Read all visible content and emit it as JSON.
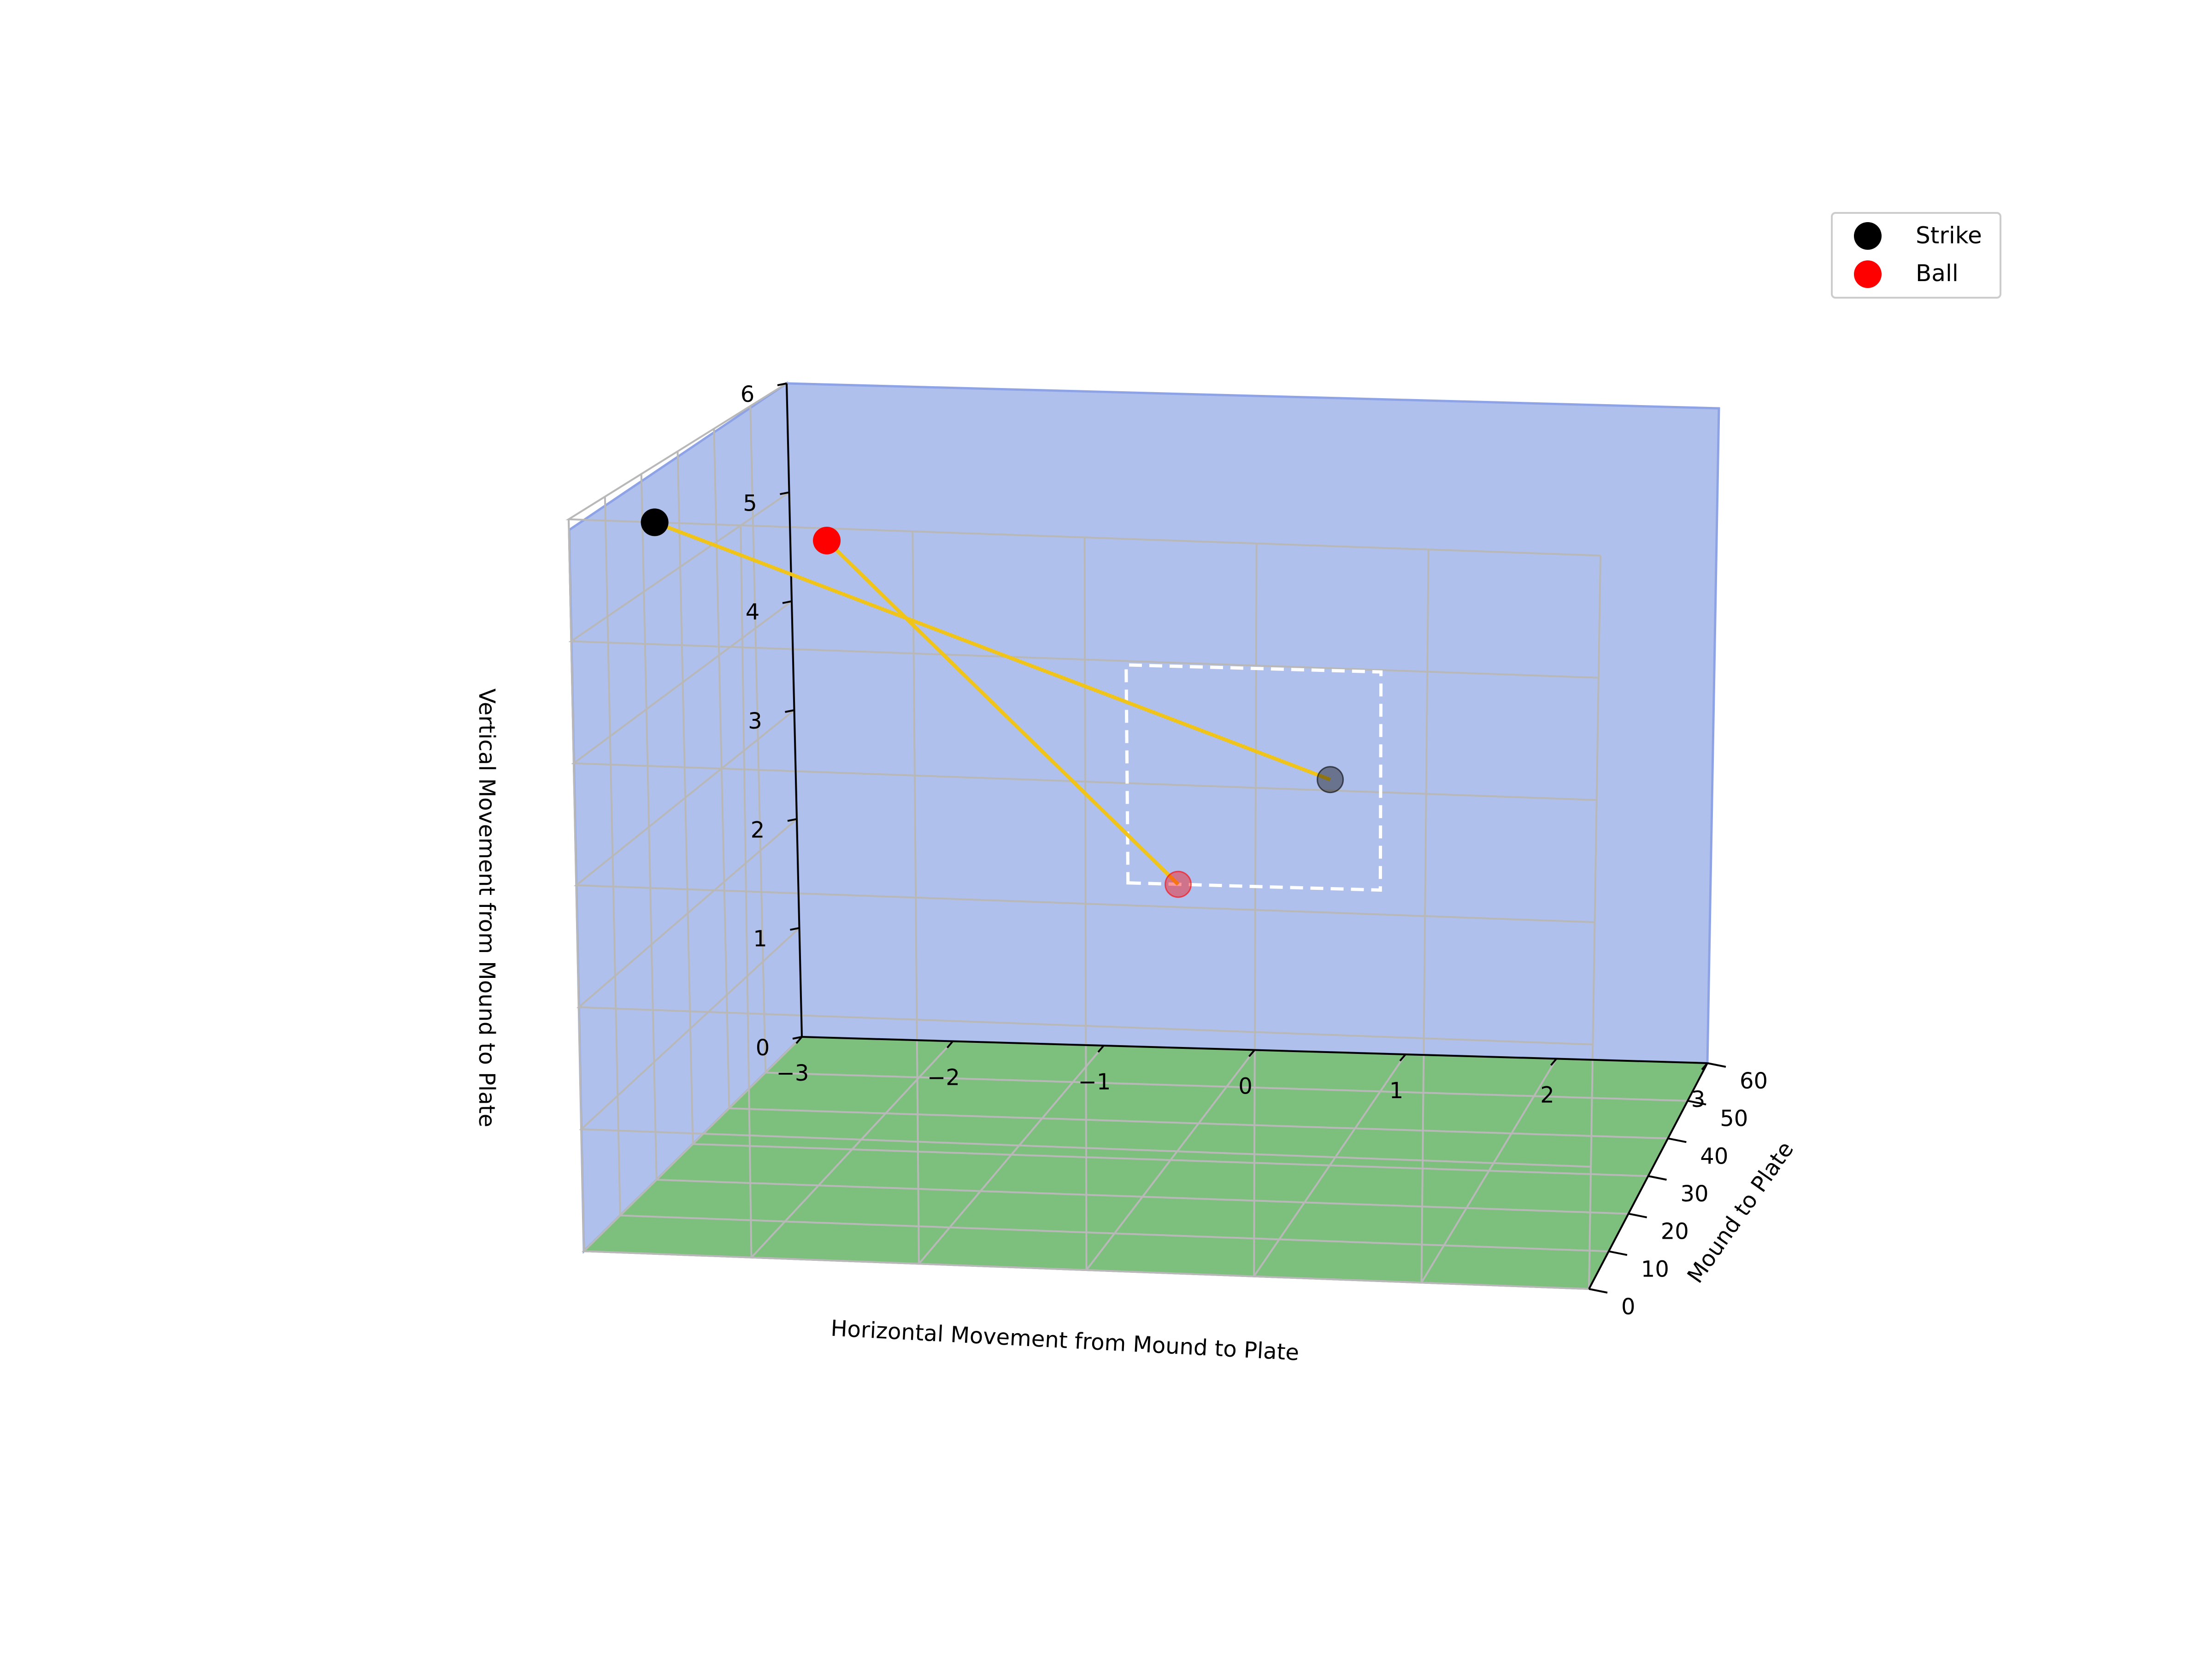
{
  "chart_data": {
    "type": "scatter",
    "projection": "3d",
    "title": "",
    "xlabel": "Horizontal Movement from Mound to Plate",
    "ylabel": "Mound to Plate",
    "zlabel": "Vertical Movement from Mound to Plate",
    "xlim": [
      -3,
      3
    ],
    "ylim": [
      0,
      60
    ],
    "zlim": [
      0,
      6
    ],
    "x_ticks": [
      "−3",
      "−2",
      "−1",
      "0",
      "1",
      "2",
      "3"
    ],
    "y_ticks": [
      "0",
      "10",
      "20",
      "30",
      "40",
      "50",
      "60"
    ],
    "z_ticks": [
      "0",
      "1",
      "2",
      "3",
      "4",
      "5",
      "6"
    ],
    "grid": true,
    "legend_position": "top-right",
    "legend": [
      {
        "label": "Strike",
        "color": "#000000"
      },
      {
        "label": "Ball",
        "color": "#ff0000"
      }
    ],
    "pitches": [
      {
        "series": "Strike",
        "release": {
          "x": -2.5,
          "y": 0,
          "z": 6.0
        },
        "plate": {
          "x": 0.5,
          "y": 60,
          "z": 2.5
        }
      },
      {
        "series": "Ball",
        "release": {
          "x": -1.5,
          "y": 0,
          "z": 5.9
        },
        "plate": {
          "x": -0.5,
          "y": 60,
          "z": 1.5
        }
      }
    ],
    "strike_zone": {
      "x": [
        -0.83,
        0.83
      ],
      "z": [
        1.5,
        3.5
      ],
      "y": 60
    },
    "colors": {
      "back_wall": "#b0c0ec",
      "floor": "#7dbf7d",
      "trajectory": "#f0c419",
      "strike_zone": "#ffffff",
      "grid": "#b8b8b8"
    }
  }
}
